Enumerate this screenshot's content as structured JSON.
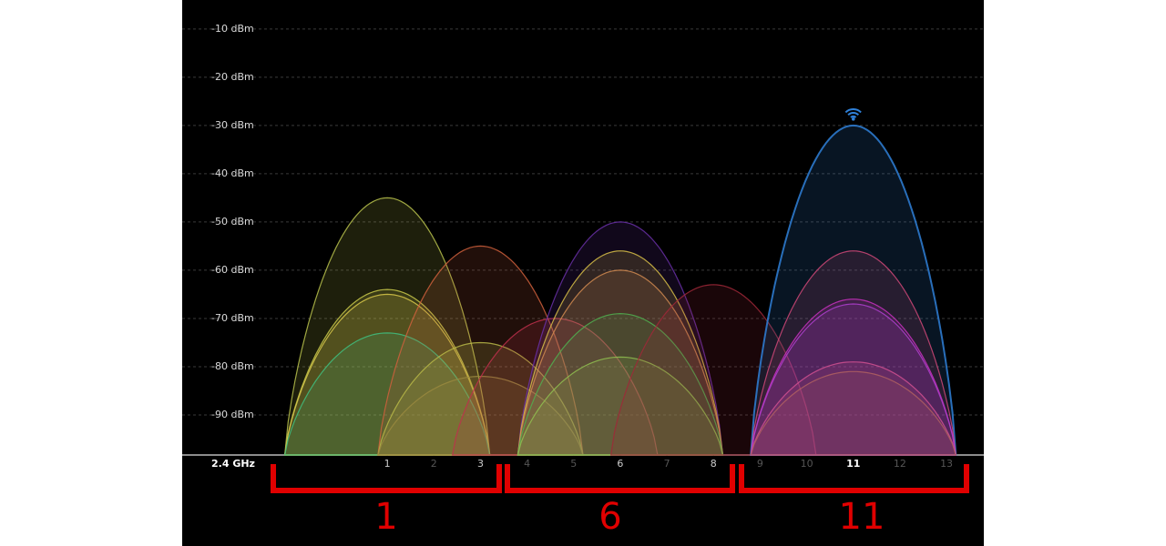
{
  "chart_data": {
    "type": "wifi-spectrum",
    "x_label": "2.4 GHz",
    "xlim": [
      -3.4,
      13.8
    ],
    "xticks": [
      1,
      2,
      3,
      4,
      5,
      6,
      7,
      8,
      9,
      10,
      11,
      12,
      13
    ],
    "ylim": [
      -98.3,
      -4
    ],
    "yticks": [
      {
        "value": -10,
        "label": "-10 dBm"
      },
      {
        "value": -20,
        "label": "-20 dBm"
      },
      {
        "value": -30,
        "label": "-30 dBm"
      },
      {
        "value": -40,
        "label": "-40 dBm"
      },
      {
        "value": -50,
        "label": "-50 dBm"
      },
      {
        "value": -60,
        "label": "-60 dBm"
      },
      {
        "value": -70,
        "label": "-70 dBm"
      },
      {
        "value": -80,
        "label": "-80 dBm"
      },
      {
        "value": -90,
        "label": "-90 dBm"
      }
    ],
    "grid": true,
    "networks": [
      {
        "channel": 1,
        "signal": -45,
        "color": "#b8c24c"
      },
      {
        "channel": 1,
        "signal": -64,
        "color": "#c9c94a"
      },
      {
        "channel": 1,
        "signal": -65,
        "color": "#d8c84a"
      },
      {
        "channel": 1,
        "signal": -73,
        "color": "#3fbf80"
      },
      {
        "channel": 3,
        "signal": -55,
        "color": "#d0603c"
      },
      {
        "channel": 3,
        "signal": -75,
        "color": "#b8b848"
      },
      {
        "channel": 3,
        "signal": -82,
        "color": "#9a8a40"
      },
      {
        "channel": 4.6,
        "signal": -70,
        "color": "#c0304c"
      },
      {
        "channel": 6,
        "signal": -50,
        "color": "#6a30a8"
      },
      {
        "channel": 6,
        "signal": -56,
        "color": "#d8c048"
      },
      {
        "channel": 6,
        "signal": -60,
        "color": "#d08a50"
      },
      {
        "channel": 6,
        "signal": -69,
        "color": "#50b050"
      },
      {
        "channel": 6,
        "signal": -78,
        "color": "#90c050"
      },
      {
        "channel": 8,
        "signal": -63,
        "color": "#a02838"
      },
      {
        "channel": 11,
        "signal": -30,
        "color": "#2f80d8"
      },
      {
        "channel": 11,
        "signal": -56,
        "color": "#d04878"
      },
      {
        "channel": 11,
        "signal": -66,
        "color": "#c830c0"
      },
      {
        "channel": 11,
        "signal": -67,
        "color": "#b040d0"
      },
      {
        "channel": 11,
        "signal": -79,
        "color": "#d05090"
      },
      {
        "channel": 11,
        "signal": -81,
        "color": "#b06060"
      }
    ],
    "annotations": [
      "1",
      "6",
      "11"
    ]
  }
}
